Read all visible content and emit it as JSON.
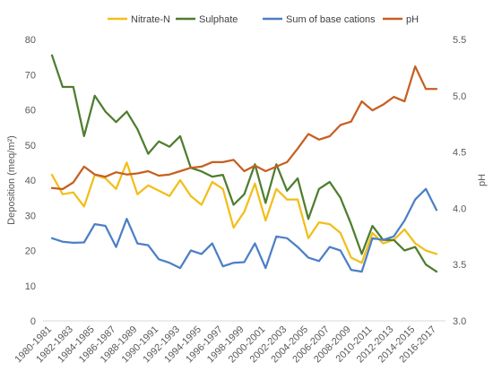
{
  "chart_data": {
    "type": "line",
    "xlabel": "",
    "ylabel": "Deposition (meq/m²)",
    "y2label": "pH",
    "ylim": [
      0,
      80
    ],
    "y2lim": [
      3.0,
      5.5
    ],
    "yticks": [
      "0",
      "10",
      "20",
      "30",
      "40",
      "50",
      "60",
      "70",
      "80"
    ],
    "y2ticks": [
      "3.0",
      "3.5",
      "4.0",
      "4.5",
      "5.0",
      "5.5"
    ],
    "grid": false,
    "legend": "top",
    "categories": [
      "1980-1981",
      "1981-1982",
      "1982-1983",
      "1983-1984",
      "1984-1985",
      "1985-1986",
      "1986-1987",
      "1987-1988",
      "1988-1989",
      "1989-1990",
      "1990-1991",
      "1991-1992",
      "1992-1993",
      "1993-1994",
      "1994-1995",
      "1995-1996",
      "1996-1997",
      "1997-1998",
      "1998-1999",
      "1999-2000",
      "2000-2001",
      "2001-2002",
      "2002-2003",
      "2003-2004",
      "2004-2005",
      "2005-2006",
      "2006-2007",
      "2007-2008",
      "2008-2009",
      "2009-2010",
      "2010-2011",
      "2011-2012",
      "2012-2013",
      "2013-2014",
      "2014-2015",
      "2015-2016",
      "2016-2017"
    ],
    "tick_labels": [
      "1980-1981",
      "1982-1983",
      "1984-1985",
      "1986-1987",
      "1988-1989",
      "1990-1991",
      "1992-1993",
      "1994-1995",
      "1996-1997",
      "1998-1999",
      "2000-2001",
      "2002-2003",
      "2004-2005",
      "2006-2007",
      "2008-2009",
      "2010-2011",
      "2012-2013",
      "2014-2015",
      "2016-2017"
    ],
    "series": [
      {
        "name": "Nitrate-N",
        "color": "#F2BE1A",
        "axis": "left",
        "values": [
          41.5,
          36,
          36.5,
          32.5,
          41.5,
          40.5,
          37.5,
          45,
          36,
          38.5,
          37,
          35.5,
          40,
          35.5,
          33,
          39.5,
          37.5,
          26.5,
          31,
          39,
          28.5,
          37.5,
          34.5,
          34.5,
          23.5,
          28,
          27.5,
          25,
          18,
          16.5,
          25,
          22,
          23,
          26,
          22,
          20,
          19
        ]
      },
      {
        "name": "Sulphate",
        "color": "#4F7D2E",
        "axis": "left",
        "values": [
          75.5,
          66.5,
          66.5,
          52.5,
          64,
          59.5,
          56.5,
          59.5,
          54.5,
          47.5,
          51,
          49.5,
          52.5,
          43.5,
          42.5,
          41,
          41.5,
          33,
          36,
          44.5,
          33.5,
          44.5,
          37,
          40.5,
          29,
          37.5,
          39.5,
          35,
          27.5,
          19,
          27,
          23,
          23,
          20,
          21,
          16,
          14
        ]
      },
      {
        "name": "Sum of base cations",
        "color": "#4D7FC5",
        "axis": "left",
        "values": [
          23.5,
          22.5,
          22.2,
          22.3,
          27.5,
          27,
          21,
          29,
          22,
          21.5,
          17.5,
          16.5,
          15,
          20,
          19,
          22,
          15.5,
          16.5,
          16.7,
          22,
          15,
          24,
          23.5,
          21,
          18,
          17,
          21,
          20,
          14.5,
          14,
          23.5,
          23,
          24,
          28.5,
          34.5,
          37.5,
          31.5
        ]
      },
      {
        "name": "pH",
        "color": "#C65F22",
        "axis": "right",
        "values": [
          4.18,
          4.17,
          4.23,
          4.37,
          4.3,
          4.28,
          4.32,
          4.3,
          4.31,
          4.33,
          4.29,
          4.3,
          4.33,
          4.36,
          4.37,
          4.41,
          4.41,
          4.43,
          4.33,
          4.38,
          4.33,
          4.37,
          4.41,
          4.53,
          4.66,
          4.61,
          4.64,
          4.74,
          4.77,
          4.95,
          4.87,
          4.92,
          4.99,
          4.95,
          5.26,
          5.06,
          5.06
        ]
      }
    ]
  }
}
